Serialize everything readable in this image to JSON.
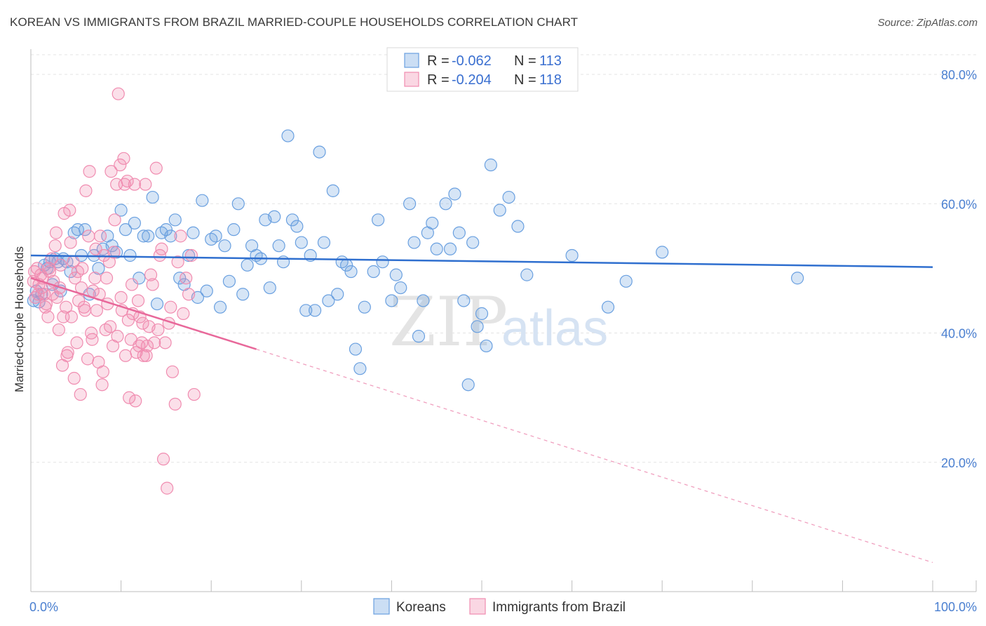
{
  "title": "KOREAN VS IMMIGRANTS FROM BRAZIL MARRIED-COUPLE HOUSEHOLDS CORRELATION CHART",
  "source": "Source: ZipAtlas.com",
  "watermark": {
    "zip": "ZIP",
    "atlas": "atlas"
  },
  "legend_top": [
    {
      "r_label": "R =",
      "r_value": "-0.062",
      "n_label": "N =",
      "n_value": "113",
      "color": "#6aa0e0"
    },
    {
      "r_label": "R =",
      "r_value": "-0.204",
      "n_label": "N =",
      "n_value": "118",
      "color": "#f08cb0"
    }
  ],
  "chart_data": {
    "type": "scatter",
    "title": "KOREAN VS IMMIGRANTS FROM BRAZIL MARRIED-COUPLE HOUSEHOLDS CORRELATION CHART",
    "xlabel": "",
    "ylabel": "Married-couple Households",
    "xlim": [
      0,
      100
    ],
    "ylim": [
      0,
      85
    ],
    "x_tick_labels": [
      "0.0%",
      "100.0%"
    ],
    "y_ticks": [
      20,
      40,
      60,
      80
    ],
    "y_tick_labels": [
      "20.0%",
      "40.0%",
      "60.0%",
      "80.0%"
    ],
    "grid": true,
    "legend": "top-center",
    "series": [
      {
        "name": "Koreans",
        "color": "#6aa0e0",
        "trend": {
          "x": [
            0,
            100
          ],
          "y": [
            52.0,
            50.2
          ],
          "extrapolated": false
        },
        "points": [
          [
            0.3,
            45.0
          ],
          [
            0.6,
            46.5
          ],
          [
            0.9,
            44.8
          ],
          [
            1.2,
            46.0
          ],
          [
            1.5,
            50.5
          ],
          [
            1.8,
            50.0
          ],
          [
            2.1,
            51.0
          ],
          [
            2.4,
            47.5
          ],
          [
            2.7,
            51.5
          ],
          [
            3.0,
            51.0
          ],
          [
            3.3,
            46.5
          ],
          [
            3.6,
            51.5
          ],
          [
            4.0,
            51.0
          ],
          [
            4.4,
            49.5
          ],
          [
            4.8,
            55.5
          ],
          [
            5.2,
            56.0
          ],
          [
            5.6,
            52.0
          ],
          [
            6.0,
            56.0
          ],
          [
            6.5,
            46.0
          ],
          [
            7.0,
            52.0
          ],
          [
            7.5,
            50.0
          ],
          [
            8.0,
            53.0
          ],
          [
            8.5,
            55.0
          ],
          [
            9.0,
            53.5
          ],
          [
            9.5,
            52.5
          ],
          [
            10.0,
            59.0
          ],
          [
            10.5,
            56.0
          ],
          [
            11.0,
            52.0
          ],
          [
            11.5,
            57.0
          ],
          [
            12.0,
            48.5
          ],
          [
            12.5,
            55.0
          ],
          [
            13.0,
            55.0
          ],
          [
            13.5,
            61.0
          ],
          [
            14.0,
            44.5
          ],
          [
            14.5,
            55.5
          ],
          [
            15.0,
            56.0
          ],
          [
            15.5,
            55.0
          ],
          [
            16.0,
            57.5
          ],
          [
            16.5,
            48.5
          ],
          [
            17.0,
            47.5
          ],
          [
            17.5,
            52.0
          ],
          [
            18.0,
            55.5
          ],
          [
            18.5,
            45.5
          ],
          [
            19.0,
            60.5
          ],
          [
            19.5,
            46.5
          ],
          [
            20.0,
            54.5
          ],
          [
            20.5,
            55.0
          ],
          [
            21.0,
            44.0
          ],
          [
            21.5,
            53.5
          ],
          [
            22.0,
            48.0
          ],
          [
            22.5,
            56.0
          ],
          [
            23.0,
            60.0
          ],
          [
            23.5,
            46.0
          ],
          [
            24.0,
            50.5
          ],
          [
            24.5,
            53.5
          ],
          [
            25.0,
            52.0
          ],
          [
            25.5,
            51.5
          ],
          [
            26.0,
            57.5
          ],
          [
            26.5,
            47.0
          ],
          [
            27.0,
            58.0
          ],
          [
            27.5,
            53.5
          ],
          [
            28.0,
            51.0
          ],
          [
            28.5,
            70.5
          ],
          [
            29.0,
            57.5
          ],
          [
            29.5,
            56.5
          ],
          [
            30.0,
            54.0
          ],
          [
            30.5,
            43.5
          ],
          [
            31.0,
            52.0
          ],
          [
            31.5,
            43.5
          ],
          [
            32.0,
            68.0
          ],
          [
            32.5,
            54.0
          ],
          [
            33.0,
            45.0
          ],
          [
            33.5,
            62.0
          ],
          [
            34.0,
            46.0
          ],
          [
            34.5,
            51.0
          ],
          [
            35.0,
            50.5
          ],
          [
            35.5,
            49.5
          ],
          [
            36.0,
            37.5
          ],
          [
            36.5,
            34.5
          ],
          [
            37.0,
            44.0
          ],
          [
            38.0,
            49.5
          ],
          [
            38.5,
            57.5
          ],
          [
            39.0,
            51.0
          ],
          [
            40.0,
            45.0
          ],
          [
            40.5,
            49.0
          ],
          [
            41.0,
            47.0
          ],
          [
            42.0,
            60.0
          ],
          [
            42.5,
            54.0
          ],
          [
            43.0,
            39.5
          ],
          [
            43.5,
            45.0
          ],
          [
            44.0,
            55.5
          ],
          [
            44.5,
            57.0
          ],
          [
            45.0,
            53.0
          ],
          [
            46.0,
            60.0
          ],
          [
            46.5,
            53.0
          ],
          [
            47.0,
            61.5
          ],
          [
            47.5,
            55.5
          ],
          [
            48.0,
            45.0
          ],
          [
            48.5,
            32.0
          ],
          [
            49.0,
            54.0
          ],
          [
            49.5,
            41.0
          ],
          [
            50.0,
            43.0
          ],
          [
            50.5,
            38.0
          ],
          [
            51.0,
            66.0
          ],
          [
            52.0,
            59.0
          ],
          [
            53.0,
            61.0
          ],
          [
            54.0,
            56.5
          ],
          [
            55.0,
            49.0
          ],
          [
            60.0,
            52.0
          ],
          [
            64.0,
            44.0
          ],
          [
            66.0,
            48.0
          ],
          [
            70.0,
            52.5
          ],
          [
            85.0,
            48.5
          ]
        ]
      },
      {
        "name": "Immigrants from Brazil",
        "color": "#f08cb0",
        "trend": {
          "x": [
            0,
            25
          ],
          "y": [
            48.5,
            37.5
          ],
          "dashed_x": [
            25,
            100
          ],
          "dashed_y": [
            37.5,
            4.5
          ]
        },
        "points": [
          [
            0.3,
            48.0
          ],
          [
            0.5,
            45.5
          ],
          [
            0.7,
            50.0
          ],
          [
            0.9,
            47.5
          ],
          [
            1.1,
            49.0
          ],
          [
            1.3,
            48.5
          ],
          [
            1.5,
            46.0
          ],
          [
            1.7,
            44.5
          ],
          [
            1.9,
            42.5
          ],
          [
            2.1,
            49.5
          ],
          [
            2.3,
            51.5
          ],
          [
            2.5,
            48.0
          ],
          [
            2.7,
            53.5
          ],
          [
            2.9,
            45.5
          ],
          [
            3.1,
            40.5
          ],
          [
            3.3,
            50.5
          ],
          [
            3.5,
            35.0
          ],
          [
            3.7,
            58.5
          ],
          [
            3.9,
            44.0
          ],
          [
            4.1,
            37.0
          ],
          [
            4.3,
            59.0
          ],
          [
            4.5,
            42.5
          ],
          [
            4.7,
            51.0
          ],
          [
            4.9,
            48.5
          ],
          [
            5.1,
            38.5
          ],
          [
            5.3,
            45.0
          ],
          [
            5.5,
            30.5
          ],
          [
            5.7,
            50.0
          ],
          [
            5.9,
            44.0
          ],
          [
            6.1,
            62.0
          ],
          [
            6.3,
            36.0
          ],
          [
            6.5,
            65.0
          ],
          [
            6.7,
            40.0
          ],
          [
            6.9,
            46.5
          ],
          [
            7.1,
            48.5
          ],
          [
            7.3,
            43.5
          ],
          [
            7.5,
            35.5
          ],
          [
            7.7,
            55.0
          ],
          [
            7.9,
            32.0
          ],
          [
            8.1,
            52.0
          ],
          [
            8.3,
            40.5
          ],
          [
            8.5,
            44.5
          ],
          [
            8.7,
            51.0
          ],
          [
            8.9,
            65.0
          ],
          [
            9.1,
            38.0
          ],
          [
            9.3,
            57.5
          ],
          [
            9.5,
            63.0
          ],
          [
            9.7,
            77.0
          ],
          [
            9.9,
            66.0
          ],
          [
            10.1,
            43.5
          ],
          [
            10.3,
            67.0
          ],
          [
            10.5,
            36.5
          ],
          [
            10.7,
            63.5
          ],
          [
            10.9,
            30.0
          ],
          [
            11.1,
            39.0
          ],
          [
            11.3,
            43.0
          ],
          [
            11.5,
            63.0
          ],
          [
            11.7,
            37.0
          ],
          [
            11.9,
            45.0
          ],
          [
            12.1,
            42.5
          ],
          [
            12.3,
            38.5
          ],
          [
            12.5,
            36.5
          ],
          [
            12.7,
            63.0
          ],
          [
            12.9,
            38.0
          ],
          [
            13.1,
            41.0
          ],
          [
            13.3,
            49.0
          ],
          [
            13.5,
            47.5
          ],
          [
            13.7,
            38.5
          ],
          [
            13.9,
            65.5
          ],
          [
            14.1,
            40.5
          ],
          [
            14.3,
            52.0
          ],
          [
            14.5,
            53.0
          ],
          [
            14.7,
            20.5
          ],
          [
            14.9,
            38.5
          ],
          [
            15.1,
            16.0
          ],
          [
            15.3,
            41.5
          ],
          [
            15.5,
            44.0
          ],
          [
            15.7,
            34.0
          ],
          [
            16.0,
            29.0
          ],
          [
            16.3,
            51.0
          ],
          [
            16.6,
            55.0
          ],
          [
            16.9,
            43.0
          ],
          [
            17.2,
            48.5
          ],
          [
            17.5,
            46.0
          ],
          [
            17.8,
            52.0
          ],
          [
            18.1,
            30.5
          ],
          [
            0.4,
            49.5
          ],
          [
            0.8,
            46.0
          ],
          [
            1.2,
            47.0
          ],
          [
            1.6,
            44.0
          ],
          [
            2.0,
            50.0
          ],
          [
            2.4,
            46.0
          ],
          [
            2.8,
            55.5
          ],
          [
            3.2,
            47.0
          ],
          [
            3.6,
            42.5
          ],
          [
            4.0,
            36.5
          ],
          [
            4.4,
            54.0
          ],
          [
            4.8,
            33.0
          ],
          [
            5.2,
            49.5
          ],
          [
            5.6,
            47.0
          ],
          [
            6.0,
            43.5
          ],
          [
            6.4,
            55.0
          ],
          [
            6.8,
            39.0
          ],
          [
            7.2,
            53.0
          ],
          [
            7.6,
            46.0
          ],
          [
            8.0,
            34.0
          ],
          [
            8.4,
            48.5
          ],
          [
            8.8,
            41.0
          ],
          [
            9.2,
            52.5
          ],
          [
            9.6,
            39.5
          ],
          [
            10.0,
            45.5
          ],
          [
            10.4,
            63.0
          ],
          [
            10.8,
            42.0
          ],
          [
            11.2,
            47.5
          ],
          [
            11.6,
            29.5
          ],
          [
            12.0,
            38.0
          ],
          [
            12.4,
            41.5
          ],
          [
            12.8,
            36.5
          ]
        ]
      }
    ]
  },
  "bottom_legend": [
    {
      "label": "Koreans",
      "color": "#6aa0e0"
    },
    {
      "label": "Immigrants from Brazil",
      "color": "#f08cb0"
    }
  ]
}
